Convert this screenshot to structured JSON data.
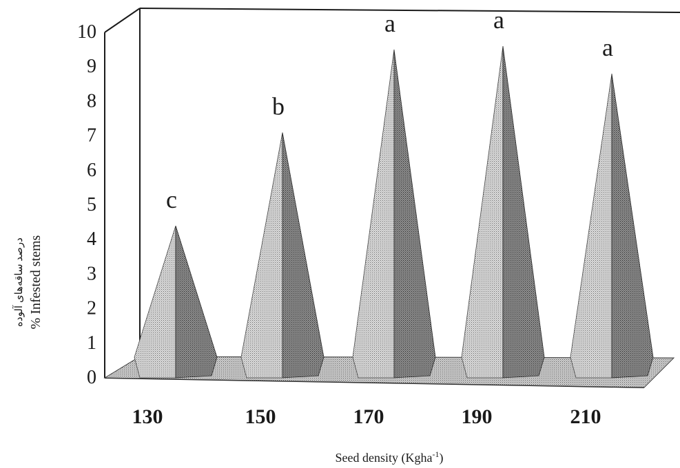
{
  "chart_data": {
    "type": "bar",
    "style": "3d-cone",
    "title": "",
    "categories": [
      "130",
      "150",
      "170",
      "190",
      "210"
    ],
    "values": [
      4.4,
      7.1,
      9.5,
      9.6,
      8.8
    ],
    "significance_letters": [
      "c",
      "b",
      "a",
      "a",
      "a"
    ],
    "ylim": [
      0,
      10
    ],
    "yticks": [
      "0",
      "1",
      "2",
      "3",
      "4",
      "5",
      "6",
      "7",
      "8",
      "9",
      "10"
    ],
    "ylabel": "% Infested stems",
    "ylabel_persian": "درصد ساقه‌های آلوده",
    "xlabel_main": "Seed density (Kgha",
    "xlabel_sup": "-1",
    "xlabel_close": ")",
    "grid": false,
    "legend": "none",
    "colors": {
      "cone_light": "#d4d4d4",
      "cone_dark": "#8c8c8c",
      "floor": "#bdbdbd",
      "axis": "#1a1a1a"
    }
  }
}
